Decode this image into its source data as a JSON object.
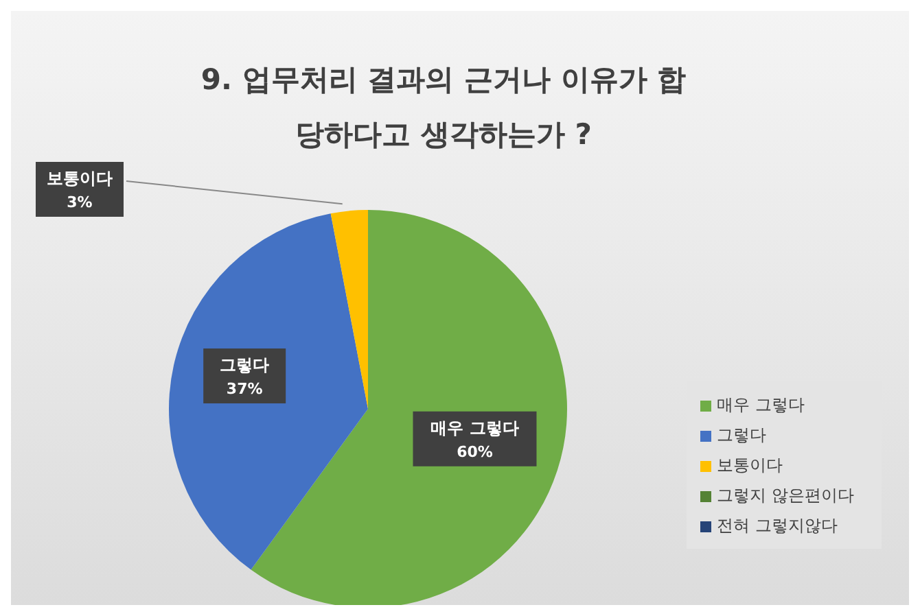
{
  "chart_data": {
    "type": "pie",
    "title": "9. 업무처리 결과의 근거나 이유가 합당하다고 생각하는가 ?",
    "categories": [
      "매우 그렇다",
      "그렇다",
      "보통이다",
      "그렇지 않은편이다",
      "전혀 그렇지않다"
    ],
    "values": [
      60,
      37,
      3,
      0,
      0
    ],
    "colors": [
      "#70ad47",
      "#4472c4",
      "#ffc000",
      "#548235",
      "#264478"
    ],
    "value_labels": [
      "60%",
      "37%",
      "3%",
      null,
      null
    ],
    "legend": "right"
  }
}
